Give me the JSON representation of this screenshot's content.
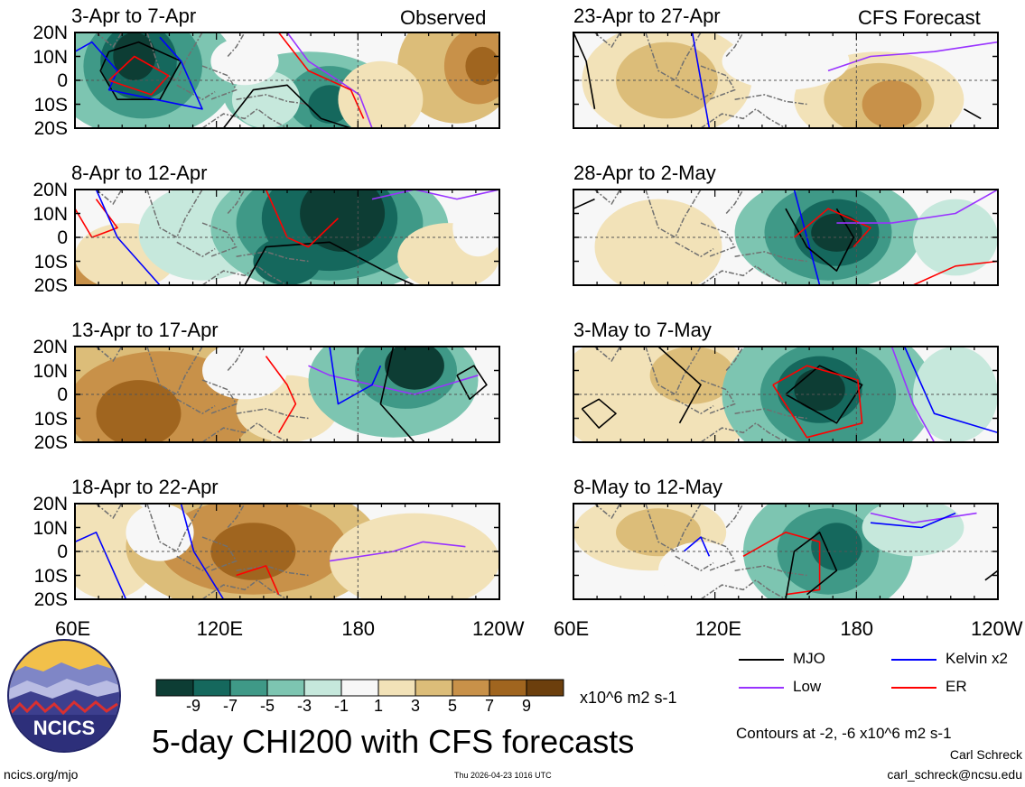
{
  "title": "5-day CHI200 with CFS forecasts",
  "observed_label": "Observed",
  "forecast_label": "CFS Forecast",
  "panels_left": [
    "3-Apr to 7-Apr",
    "8-Apr to 12-Apr",
    "13-Apr to 17-Apr",
    "18-Apr to 22-Apr"
  ],
  "panels_right": [
    "23-Apr to 27-Apr",
    "28-Apr to 2-May",
    "3-May to 7-May",
    "8-May to 12-May"
  ],
  "lat_labels": [
    "20N",
    "10N",
    "0",
    "10S",
    "20S"
  ],
  "lon_labels": [
    "60E",
    "120E",
    "180",
    "120W"
  ],
  "colorbar": {
    "ticks": [
      "-9",
      "-7",
      "-5",
      "-3",
      "-1",
      "1",
      "3",
      "5",
      "7",
      "9"
    ],
    "units": "x10^6 m2 s-1",
    "colors": [
      "#0d3d34",
      "#15685d",
      "#3f9987",
      "#7dc5b1",
      "#c6e8dc",
      "#f7f7f7",
      "#f2e2b8",
      "#dcbd79",
      "#c89149",
      "#a0651f",
      "#6c3f0d"
    ]
  },
  "legend": [
    {
      "label": "MJO",
      "color": "#000000"
    },
    {
      "label": "Kelvin x2",
      "color": "#0000ff"
    },
    {
      "label": "Low",
      "color": "#9933ff"
    },
    {
      "label": "ER",
      "color": "#ff0000"
    }
  ],
  "contour_note": "Contours at -2, -6 x10^6 m2 s-1",
  "author": "Carl Schreck",
  "email": "carl_schreck@ncsu.edu",
  "url": "ncics.org/mjo",
  "timestamp": "Thu 2026-04-23 1016 UTC",
  "logo_text": "NCICS"
}
